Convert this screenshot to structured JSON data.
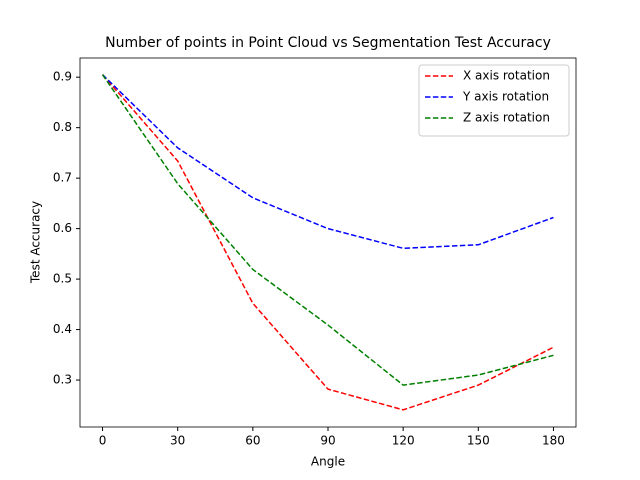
{
  "chart_data": {
    "type": "line",
    "title": "Number of points in Point Cloud vs Segmentation Test Accuracy",
    "x_label": "Angle",
    "y_label": "Test Accuracy",
    "x": [
      0,
      30,
      60,
      90,
      120,
      150,
      180
    ],
    "series": [
      {
        "name": "X axis rotation",
        "color": "#ff0000",
        "values": [
          0.905,
          0.734,
          0.452,
          0.282,
          0.241,
          0.29,
          0.365
        ]
      },
      {
        "name": "Y axis rotation",
        "color": "#0000ff",
        "values": [
          0.905,
          0.76,
          0.661,
          0.6,
          0.561,
          0.568,
          0.622
        ]
      },
      {
        "name": "Z axis rotation",
        "color": "#008000",
        "values": [
          0.905,
          0.689,
          0.519,
          0.409,
          0.29,
          0.31,
          0.349
        ]
      }
    ],
    "line_style": "dashed",
    "xlim": [
      -9,
      189
    ],
    "xticks": [
      0,
      30,
      60,
      90,
      120,
      150,
      180
    ],
    "ylim": [
      0.207,
      0.938
    ],
    "yticks": [
      0.3,
      0.4,
      0.5,
      0.6,
      0.7,
      0.8,
      0.9
    ],
    "legend": "upper right"
  }
}
